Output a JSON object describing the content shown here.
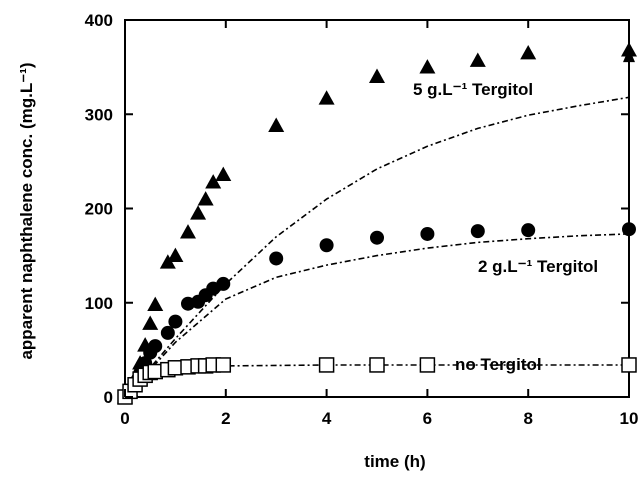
{
  "chart_data": {
    "type": "scatter",
    "title": "",
    "xlabel": "time (h)",
    "ylabel": "apparent naphthalene conc. (mg.L⁻¹)",
    "xlim": [
      0,
      10
    ],
    "ylim": [
      0,
      400
    ],
    "xticks": [
      "0",
      "2",
      "4",
      "6",
      "8",
      "10"
    ],
    "yticks": [
      "0",
      "100",
      "200",
      "300",
      "400"
    ],
    "grid": false,
    "series": [
      {
        "name": "5 g.L⁻¹ Tergitol",
        "marker": "triangle-filled",
        "color": "#000000",
        "points": [
          [
            0,
            0
          ],
          [
            0.1,
            8
          ],
          [
            0.2,
            20
          ],
          [
            0.3,
            36
          ],
          [
            0.4,
            55
          ],
          [
            0.5,
            78
          ],
          [
            0.6,
            98
          ],
          [
            0.85,
            143
          ],
          [
            1.0,
            150
          ],
          [
            1.25,
            175
          ],
          [
            1.45,
            195
          ],
          [
            1.6,
            210
          ],
          [
            1.75,
            228
          ],
          [
            1.95,
            236
          ],
          [
            3,
            288
          ],
          [
            4,
            317
          ],
          [
            5,
            340
          ],
          [
            6,
            350
          ],
          [
            7,
            357
          ],
          [
            8,
            365
          ],
          [
            10,
            368
          ]
        ],
        "model_curve": [
          [
            0,
            0
          ],
          [
            1,
            62
          ],
          [
            2,
            120
          ],
          [
            3,
            170
          ],
          [
            4,
            210
          ],
          [
            5,
            242
          ],
          [
            6,
            266
          ],
          [
            7,
            285
          ],
          [
            8,
            299
          ],
          [
            9,
            309
          ],
          [
            10,
            318
          ]
        ]
      },
      {
        "name": "2 g.L⁻¹ Tergitol",
        "marker": "circle-filled",
        "color": "#000000",
        "points": [
          [
            0,
            0
          ],
          [
            0.1,
            5
          ],
          [
            0.2,
            14
          ],
          [
            0.3,
            25
          ],
          [
            0.4,
            36
          ],
          [
            0.5,
            47
          ],
          [
            0.6,
            54
          ],
          [
            0.85,
            68
          ],
          [
            1.0,
            80
          ],
          [
            1.25,
            99
          ],
          [
            1.45,
            101
          ],
          [
            1.6,
            108
          ],
          [
            1.75,
            115
          ],
          [
            1.95,
            120
          ],
          [
            3,
            147
          ],
          [
            4,
            161
          ],
          [
            5,
            169
          ],
          [
            6,
            173
          ],
          [
            7,
            176
          ],
          [
            8,
            177
          ],
          [
            10,
            178
          ]
        ],
        "model_curve": [
          [
            0,
            0
          ],
          [
            1,
            58
          ],
          [
            2,
            104
          ],
          [
            3,
            127
          ],
          [
            4,
            140
          ],
          [
            5,
            150
          ],
          [
            6,
            158
          ],
          [
            7,
            164
          ],
          [
            8,
            168
          ],
          [
            9,
            171
          ],
          [
            10,
            173
          ]
        ]
      },
      {
        "name": "no Tergitol",
        "marker": "square-open",
        "color": "#000000",
        "points": [
          [
            0,
            0
          ],
          [
            0.1,
            6
          ],
          [
            0.2,
            13
          ],
          [
            0.3,
            19
          ],
          [
            0.4,
            23
          ],
          [
            0.5,
            26
          ],
          [
            0.6,
            27
          ],
          [
            0.85,
            29
          ],
          [
            1.0,
            31
          ],
          [
            1.25,
            32
          ],
          [
            1.45,
            33
          ],
          [
            1.6,
            33
          ],
          [
            1.75,
            34
          ],
          [
            1.95,
            34
          ],
          [
            4,
            34
          ],
          [
            5,
            34
          ],
          [
            6,
            34
          ],
          [
            10,
            34
          ]
        ],
        "model_curve": [
          [
            0,
            0
          ],
          [
            0.5,
            22
          ],
          [
            1,
            29
          ],
          [
            1.5,
            31
          ],
          [
            2,
            33
          ],
          [
            4,
            34
          ],
          [
            6,
            34
          ],
          [
            8,
            34
          ],
          [
            10,
            34
          ]
        ]
      }
    ],
    "annotations": [
      {
        "text": "5 g.L⁻¹ Tergitol",
        "series": 0
      },
      {
        "text": "2 g.L⁻¹ Tergitol",
        "series": 1
      },
      {
        "text": "no Tergitol",
        "series": 2
      }
    ],
    "vertical_arrow": {
      "x": 10,
      "y_from": 178,
      "y_to": 368
    }
  }
}
